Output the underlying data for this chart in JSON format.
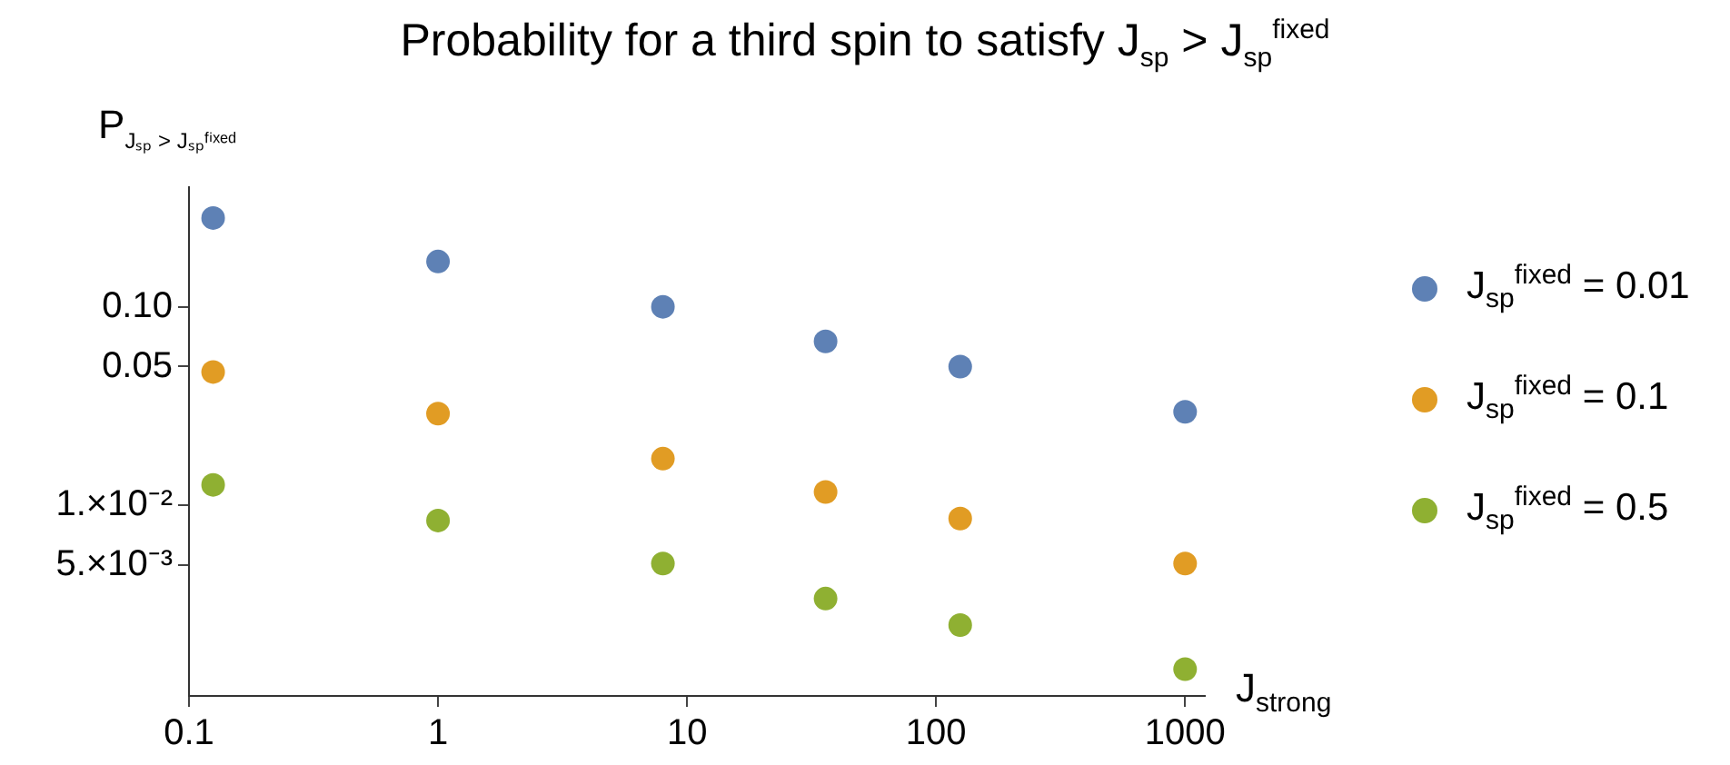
{
  "chart_data": {
    "type": "scatter",
    "title": "Probability for a third spin to satisfy J$_{sp}$ > J$_{sp}$$^{fixed}$",
    "xlabel": "J$_{strong}$",
    "ylabel": "P$_{Jₛₚ > Jₛₚᶠⁱˣᵉᵈ}$",
    "x": [
      0.125,
      1,
      8,
      36,
      125,
      1000
    ],
    "series": [
      {
        "name": "J$_{sp}$$^{fixed}$ = 0.01",
        "color": "#5e81b5",
        "values": [
          0.28,
          0.169,
          0.1,
          0.067,
          0.05,
          0.0296
        ]
      },
      {
        "name": "J$_{sp}$$^{fixed}$ = 0.1",
        "color": "#e19c24",
        "values": [
          0.047,
          0.029,
          0.0172,
          0.0117,
          0.0086,
          0.0051
        ]
      },
      {
        "name": "J$_{sp}$$^{fixed}$ = 0.5",
        "color": "#8fb032",
        "values": [
          0.0127,
          0.0084,
          0.0051,
          0.0034,
          0.0025,
          0.0015
        ]
      }
    ],
    "log": "xy",
    "xlim": [
      0.1,
      1200
    ],
    "ylim": [
      0.0011,
      0.4
    ],
    "xticks": [
      0.1,
      1,
      10,
      100,
      1000
    ],
    "yticks": [
      {
        "value": 0.1,
        "label": "0.10"
      },
      0.05,
      {
        "value": 0.01,
        "label": "1.×10⁻²"
      },
      {
        "value": 0.005,
        "label": "5.×10⁻³"
      }
    ],
    "grid": false,
    "legend": "right",
    "marker": "circle"
  }
}
